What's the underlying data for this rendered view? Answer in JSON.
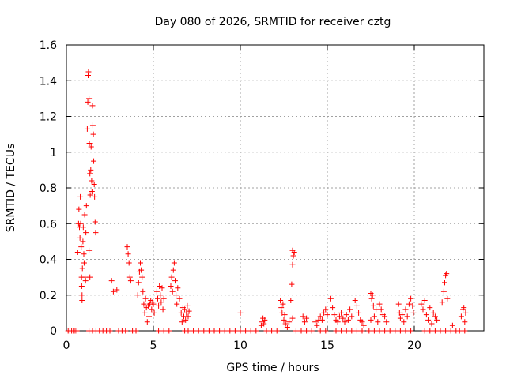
{
  "chart_data": {
    "type": "scatter",
    "title": "Day 080 of 2026, SRMTID for receiver cztg",
    "xlabel": "GPS time / hours",
    "ylabel": "SRMTID / TECUs",
    "xlim": [
      0,
      24
    ],
    "ylim": [
      0,
      1.6
    ],
    "xticks": [
      0,
      5,
      10,
      15,
      20
    ],
    "xtick_labels": [
      "0",
      "5",
      "10",
      "15",
      "20"
    ],
    "yticks": [
      0,
      0.2,
      0.4,
      0.6,
      0.8,
      1,
      1.2,
      1.4,
      1.6
    ],
    "ytick_labels": [
      "0",
      "0.2",
      "0.4",
      "0.6",
      "0.8",
      "1",
      "1.2",
      "1.4",
      "1.6"
    ],
    "grid": true,
    "series": [
      {
        "name": "SRMTID",
        "color": "#ff0000",
        "marker": "plus",
        "points": [
          [
            0.1,
            0
          ],
          [
            0.2,
            0
          ],
          [
            0.3,
            0
          ],
          [
            0.4,
            0
          ],
          [
            0.5,
            0
          ],
          [
            0.6,
            0
          ],
          [
            0.65,
            0.44
          ],
          [
            0.7,
            0.6
          ],
          [
            0.72,
            0.68
          ],
          [
            0.75,
            0.58
          ],
          [
            0.78,
            0.52
          ],
          [
            0.8,
            0.75
          ],
          [
            0.82,
            0.6
          ],
          [
            0.85,
            0.47
          ],
          [
            0.87,
            0.3
          ],
          [
            0.88,
            0.25
          ],
          [
            0.9,
            0.2
          ],
          [
            0.9,
            0.17
          ],
          [
            0.92,
            0.35
          ],
          [
            0.95,
            0.5
          ],
          [
            0.97,
            0.58
          ],
          [
            1.0,
            0.43
          ],
          [
            1.02,
            0.38
          ],
          [
            1.05,
            0.65
          ],
          [
            1.07,
            0.3
          ],
          [
            1.1,
            0.28
          ],
          [
            1.12,
            0.55
          ],
          [
            1.15,
            0.7
          ],
          [
            1.2,
            1.13
          ],
          [
            1.23,
            1.28
          ],
          [
            1.25,
            1.43
          ],
          [
            1.27,
            1.45
          ],
          [
            1.3,
            1.3
          ],
          [
            1.32,
            1.05
          ],
          [
            1.35,
            0.88
          ],
          [
            1.37,
            0.76
          ],
          [
            1.4,
            0.9
          ],
          [
            1.42,
            1.03
          ],
          [
            1.45,
            0.84
          ],
          [
            1.47,
            0.78
          ],
          [
            1.5,
            1.26
          ],
          [
            1.52,
            1.15
          ],
          [
            1.55,
            1.1
          ],
          [
            1.57,
            0.95
          ],
          [
            1.6,
            0.82
          ],
          [
            1.62,
            0.75
          ],
          [
            1.65,
            0.61
          ],
          [
            1.68,
            0.55
          ],
          [
            1.3,
            0.45
          ],
          [
            1.35,
            0.3
          ],
          [
            1.3,
            0
          ],
          [
            1.5,
            0
          ],
          [
            1.7,
            0
          ],
          [
            1.9,
            0
          ],
          [
            2.1,
            0
          ],
          [
            2.3,
            0
          ],
          [
            2.5,
            0
          ],
          [
            2.6,
            0.28
          ],
          [
            2.7,
            0.22
          ],
          [
            2.9,
            0.23
          ],
          [
            3.0,
            0
          ],
          [
            3.2,
            0
          ],
          [
            3.4,
            0
          ],
          [
            3.5,
            0.47
          ],
          [
            3.55,
            0.43
          ],
          [
            3.6,
            0.38
          ],
          [
            3.65,
            0.3
          ],
          [
            3.7,
            0.28
          ],
          [
            3.8,
            0
          ],
          [
            4.0,
            0
          ],
          [
            4.1,
            0.2
          ],
          [
            4.15,
            0.27
          ],
          [
            4.2,
            0.33
          ],
          [
            4.25,
            0.38
          ],
          [
            4.3,
            0.34
          ],
          [
            4.35,
            0.3
          ],
          [
            4.4,
            0.22
          ],
          [
            4.45,
            0.15
          ],
          [
            4.5,
            0.1
          ],
          [
            4.55,
            0.18
          ],
          [
            4.6,
            0.13
          ],
          [
            4.65,
            0.05
          ],
          [
            4.7,
            0.14
          ],
          [
            4.75,
            0.08
          ],
          [
            4.8,
            0.15
          ],
          [
            4.85,
            0.17
          ],
          [
            4.9,
            0.12
          ],
          [
            4.95,
            0.16
          ],
          [
            5.0,
            0.15
          ],
          [
            5.05,
            0.1
          ],
          [
            5.2,
            0.22
          ],
          [
            5.25,
            0.18
          ],
          [
            5.3,
            0.14
          ],
          [
            5.35,
            0.25
          ],
          [
            5.4,
            0.2
          ],
          [
            5.45,
            0.16
          ],
          [
            5.5,
            0.24
          ],
          [
            5.55,
            0.12
          ],
          [
            5.6,
            0.18
          ],
          [
            5.3,
            0
          ],
          [
            5.6,
            0
          ],
          [
            5.9,
            0
          ],
          [
            6.0,
            0.25
          ],
          [
            6.05,
            0.3
          ],
          [
            6.1,
            0.22
          ],
          [
            6.15,
            0.34
          ],
          [
            6.2,
            0.38
          ],
          [
            6.25,
            0.28
          ],
          [
            6.3,
            0.2
          ],
          [
            6.35,
            0.15
          ],
          [
            6.4,
            0.24
          ],
          [
            6.5,
            0.18
          ],
          [
            6.6,
            0.1
          ],
          [
            6.65,
            0.05
          ],
          [
            6.7,
            0.13
          ],
          [
            6.75,
            0.08
          ],
          [
            6.8,
            0.12
          ],
          [
            6.85,
            0.06
          ],
          [
            6.9,
            0.1
          ],
          [
            6.95,
            0.14
          ],
          [
            7.0,
            0.08
          ],
          [
            7.05,
            0.11
          ],
          [
            6.8,
            0
          ],
          [
            7.0,
            0
          ],
          [
            7.3,
            0
          ],
          [
            7.6,
            0
          ],
          [
            7.9,
            0
          ],
          [
            8.2,
            0
          ],
          [
            8.5,
            0
          ],
          [
            8.8,
            0
          ],
          [
            9.1,
            0
          ],
          [
            9.4,
            0
          ],
          [
            9.7,
            0
          ],
          [
            10.0,
            0.1
          ],
          [
            10.0,
            0
          ],
          [
            10.3,
            0
          ],
          [
            10.6,
            0
          ],
          [
            10.9,
            0
          ],
          [
            11.2,
            0.03
          ],
          [
            11.25,
            0.05
          ],
          [
            11.3,
            0.07
          ],
          [
            11.35,
            0.04
          ],
          [
            11.4,
            0.06
          ],
          [
            11.5,
            0
          ],
          [
            11.8,
            0
          ],
          [
            12.1,
            0
          ],
          [
            12.3,
            0.17
          ],
          [
            12.35,
            0.13
          ],
          [
            12.4,
            0.1
          ],
          [
            12.45,
            0.15
          ],
          [
            12.5,
            0.06
          ],
          [
            12.55,
            0.09
          ],
          [
            12.6,
            0.04
          ],
          [
            12.7,
            0.02
          ],
          [
            12.8,
            0.05
          ],
          [
            12.9,
            0.17
          ],
          [
            12.95,
            0.26
          ],
          [
            13.0,
            0.37
          ],
          [
            13.0,
            0.45
          ],
          [
            13.05,
            0.42
          ],
          [
            13.1,
            0.44
          ],
          [
            13.0,
            0.07
          ],
          [
            13.2,
            0
          ],
          [
            13.5,
            0
          ],
          [
            13.6,
            0.08
          ],
          [
            13.7,
            0.05
          ],
          [
            13.8,
            0.07
          ],
          [
            13.8,
            0
          ],
          [
            14.1,
            0
          ],
          [
            14.3,
            0.05
          ],
          [
            14.4,
            0.03
          ],
          [
            14.5,
            0.06
          ],
          [
            14.6,
            0.08
          ],
          [
            14.7,
            0.06
          ],
          [
            14.8,
            0.1
          ],
          [
            14.9,
            0.12
          ],
          [
            15.0,
            0.09
          ],
          [
            14.6,
            0
          ],
          [
            14.9,
            0
          ],
          [
            15.2,
            0.18
          ],
          [
            15.3,
            0.13
          ],
          [
            15.4,
            0.09
          ],
          [
            15.5,
            0.06
          ],
          [
            15.6,
            0.05
          ],
          [
            15.7,
            0.08
          ],
          [
            15.8,
            0.1
          ],
          [
            15.9,
            0.07
          ],
          [
            16.0,
            0.05
          ],
          [
            16.1,
            0.09
          ],
          [
            16.2,
            0.06
          ],
          [
            16.3,
            0.12
          ],
          [
            16.4,
            0.08
          ],
          [
            15.5,
            0
          ],
          [
            15.8,
            0
          ],
          [
            16.1,
            0
          ],
          [
            16.4,
            0
          ],
          [
            16.6,
            0.17
          ],
          [
            16.7,
            0.14
          ],
          [
            16.8,
            0.1
          ],
          [
            16.9,
            0.06
          ],
          [
            17.0,
            0.05
          ],
          [
            17.1,
            0.03
          ],
          [
            16.7,
            0
          ],
          [
            17.0,
            0
          ],
          [
            17.5,
            0.21
          ],
          [
            17.55,
            0.18
          ],
          [
            17.6,
            0.2
          ],
          [
            17.65,
            0.14
          ],
          [
            17.7,
            0.08
          ],
          [
            17.8,
            0.12
          ],
          [
            17.9,
            0.05
          ],
          [
            17.5,
            0.06
          ],
          [
            17.4,
            0
          ],
          [
            17.7,
            0
          ],
          [
            18.0,
            0.15
          ],
          [
            18.1,
            0.12
          ],
          [
            18.2,
            0.09
          ],
          [
            18.3,
            0.08
          ],
          [
            18.4,
            0.05
          ],
          [
            18.0,
            0
          ],
          [
            18.3,
            0
          ],
          [
            18.6,
            0
          ],
          [
            18.9,
            0
          ],
          [
            19.1,
            0.15
          ],
          [
            19.15,
            0.1
          ],
          [
            19.2,
            0.07
          ],
          [
            19.3,
            0.09
          ],
          [
            19.4,
            0.05
          ],
          [
            19.5,
            0.12
          ],
          [
            19.6,
            0.08
          ],
          [
            19.7,
            0.15
          ],
          [
            19.8,
            0.18
          ],
          [
            19.9,
            0.14
          ],
          [
            19.95,
            0.1
          ],
          [
            19.2,
            0
          ],
          [
            19.5,
            0
          ],
          [
            19.8,
            0
          ],
          [
            20.4,
            0.15
          ],
          [
            20.5,
            0.12
          ],
          [
            20.6,
            0.17
          ],
          [
            20.7,
            0.09
          ],
          [
            20.8,
            0.06
          ],
          [
            20.9,
            0.13
          ],
          [
            21.0,
            0.04
          ],
          [
            21.1,
            0.1
          ],
          [
            21.2,
            0.08
          ],
          [
            21.3,
            0.06
          ],
          [
            20.6,
            0
          ],
          [
            20.9,
            0
          ],
          [
            21.2,
            0
          ],
          [
            21.6,
            0.16
          ],
          [
            21.7,
            0.22
          ],
          [
            21.75,
            0.27
          ],
          [
            21.8,
            0.31
          ],
          [
            21.85,
            0.32
          ],
          [
            21.9,
            0.18
          ],
          [
            21.5,
            0
          ],
          [
            21.8,
            0
          ],
          [
            22.1,
            0
          ],
          [
            22.2,
            0.03
          ],
          [
            22.4,
            0
          ],
          [
            22.6,
            0
          ],
          [
            22.7,
            0.08
          ],
          [
            22.8,
            0.12
          ],
          [
            22.85,
            0.13
          ],
          [
            22.9,
            0.05
          ],
          [
            22.95,
            0.1
          ],
          [
            22.9,
            0
          ]
        ]
      }
    ]
  }
}
